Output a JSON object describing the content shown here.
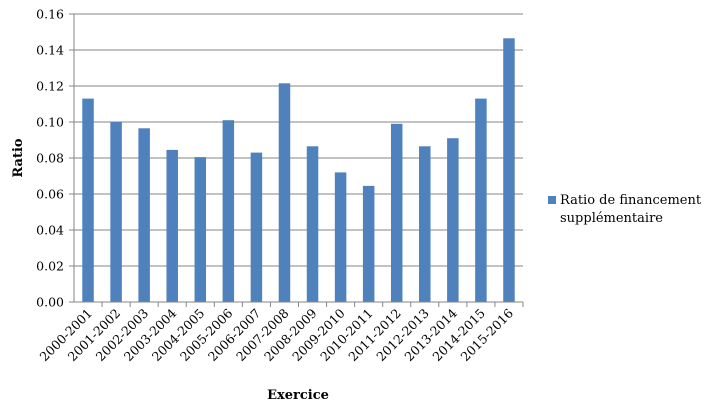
{
  "chart_data": {
    "type": "bar",
    "title": "",
    "xlabel": "Exercice",
    "ylabel": "Ratio",
    "categories": [
      "2000-2001",
      "2001-2002",
      "2002-2003",
      "2003-2004",
      "2004-2005",
      "2005-2006",
      "2006-2007",
      "2007-2008",
      "2008-2009",
      "2009-2010",
      "2010-2011",
      "2011-2012",
      "2012-2013",
      "2013-2014",
      "2014-2015",
      "2015-2016"
    ],
    "series": [
      {
        "name": "Ratio de financement supplémentaire",
        "color": "#4F81BD",
        "values": [
          0.113,
          0.1,
          0.0965,
          0.0845,
          0.0805,
          0.101,
          0.083,
          0.1215,
          0.0865,
          0.072,
          0.0645,
          0.099,
          0.0865,
          0.091,
          0.113,
          0.1465
        ]
      }
    ],
    "ylim": [
      0,
      0.16
    ],
    "yticks": [
      "0.00",
      "0.02",
      "0.04",
      "0.06",
      "0.08",
      "0.10",
      "0.12",
      "0.14",
      "0.16"
    ],
    "grid": true,
    "gridColor": "#868686",
    "legend": {
      "position": "right",
      "lines": [
        "Ratio de financement",
        "supplémentaire"
      ]
    }
  }
}
